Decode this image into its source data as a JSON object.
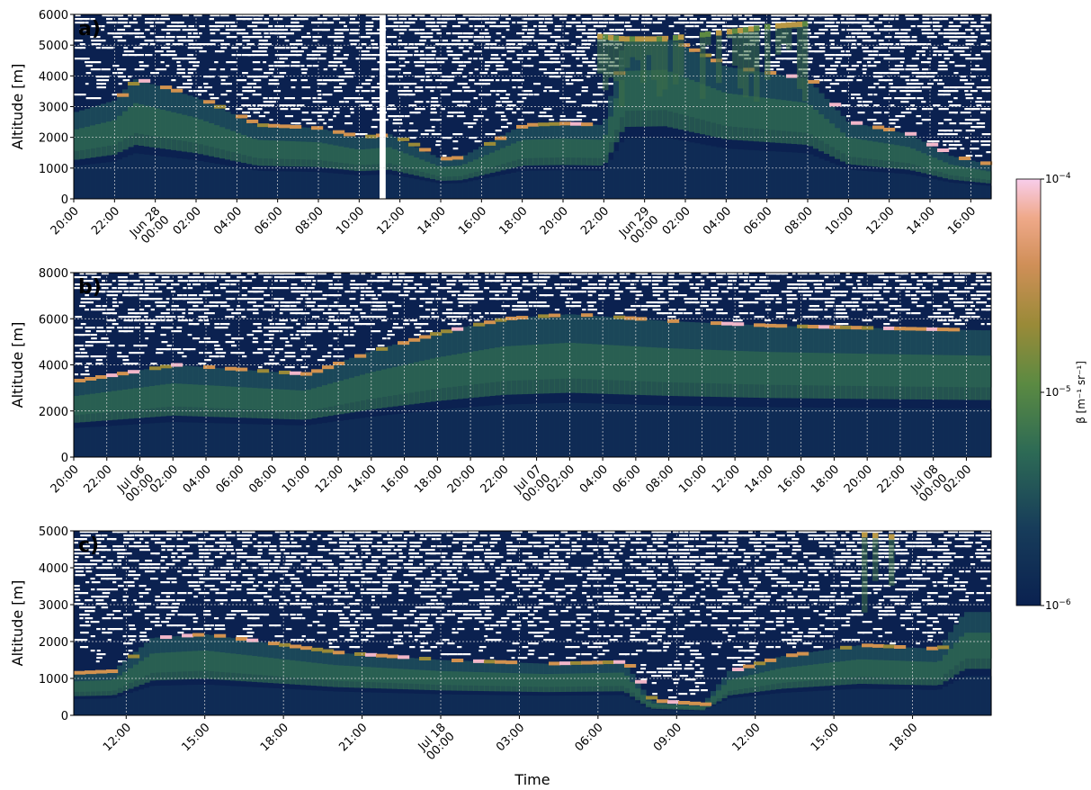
{
  "chart_data": [
    {
      "type": "heatmap",
      "panel_label": "a)",
      "ylabel": "Altitude [m]",
      "ylim": [
        0,
        6000
      ],
      "yticks": [
        0,
        1000,
        2000,
        3000,
        4000,
        5000,
        6000
      ],
      "xticklabels": [
        "20:00",
        "22:00",
        "Jun 28\n00:00",
        "02:00",
        "04:00",
        "06:00",
        "08:00",
        "10:00",
        "12:00",
        "14:00",
        "16:00",
        "18:00",
        "20:00",
        "22:00",
        "Jun 29\n00:00",
        "02:00",
        "04:00",
        "06:00",
        "08:00",
        "10:00",
        "12:00",
        "14:00",
        "16:00"
      ],
      "x_hours_start": 20,
      "x_hours_span": 45,
      "grid": true,
      "data_gap_hours": [
        15.0,
        15.3
      ],
      "layer_tops": [
        [
          0,
          2800
        ],
        [
          2,
          3200
        ],
        [
          3,
          3900
        ],
        [
          6,
          3300
        ],
        [
          9,
          2400
        ],
        [
          12,
          2300
        ],
        [
          14,
          2000
        ],
        [
          15.5,
          2100
        ],
        [
          18,
          1300
        ],
        [
          19,
          1350
        ],
        [
          22,
          2400
        ],
        [
          24,
          2450
        ],
        [
          26,
          2400
        ],
        [
          27,
          5200
        ],
        [
          29,
          5250
        ],
        [
          32,
          4300
        ],
        [
          36,
          3900
        ],
        [
          38,
          2500
        ],
        [
          41,
          2100
        ],
        [
          43,
          1400
        ],
        [
          45,
          1100
        ]
      ],
      "upper_cloud": [
        [
          25.5,
          5300
        ],
        [
          27,
          5200
        ],
        [
          29,
          5200
        ],
        [
          33,
          5500
        ],
        [
          34,
          5600
        ],
        [
          36,
          5700
        ]
      ]
    },
    {
      "type": "heatmap",
      "panel_label": "b)",
      "ylabel": "Altitude [m]",
      "ylim": [
        0,
        8000
      ],
      "yticks": [
        0,
        2000,
        4000,
        6000,
        8000
      ],
      "xticklabels": [
        "20:00",
        "22:00",
        "Jul 06\n00:00",
        "02:00",
        "04:00",
        "06:00",
        "08:00",
        "10:00",
        "12:00",
        "14:00",
        "16:00",
        "18:00",
        "20:00",
        "22:00",
        "Jul 07\n00:00",
        "02:00",
        "04:00",
        "06:00",
        "08:00",
        "10:00",
        "12:00",
        "14:00",
        "16:00",
        "18:00",
        "20:00",
        "22:00",
        "Jul 08\n00:00",
        "02:00"
      ],
      "x_hours_start": 20,
      "x_hours_span": 55.5,
      "grid": true,
      "layer_tops": [
        [
          0,
          3300
        ],
        [
          6,
          4000
        ],
        [
          10,
          3800
        ],
        [
          14,
          3600
        ],
        [
          18,
          4600
        ],
        [
          22,
          5400
        ],
        [
          26,
          6000
        ],
        [
          30,
          6200
        ],
        [
          36,
          5900
        ],
        [
          42,
          5700
        ],
        [
          48,
          5600
        ],
        [
          55,
          5500
        ]
      ]
    },
    {
      "type": "heatmap",
      "panel_label": "c)",
      "ylabel": "Altitude [m]",
      "xlabel": "Time",
      "ylim": [
        0,
        5000
      ],
      "yticks": [
        0,
        1000,
        2000,
        3000,
        4000,
        5000
      ],
      "xticklabels": [
        "12:00",
        "15:00",
        "18:00",
        "21:00",
        "Jul 18\n00:00",
        "03:00",
        "06:00",
        "09:00",
        "12:00",
        "15:00",
        "18:00"
      ],
      "x_hours_start": 10,
      "x_hours_span": 35,
      "grid": true,
      "layer_tops": [
        [
          0,
          1150
        ],
        [
          1.5,
          1200
        ],
        [
          3,
          2100
        ],
        [
          5,
          2200
        ],
        [
          7,
          2000
        ],
        [
          10,
          1700
        ],
        [
          14,
          1500
        ],
        [
          18,
          1400
        ],
        [
          21,
          1450
        ],
        [
          22,
          400
        ],
        [
          24,
          300
        ],
        [
          25,
          1200
        ],
        [
          27,
          1600
        ],
        [
          30,
          1900
        ],
        [
          33,
          1800
        ],
        [
          34,
          2800
        ],
        [
          35,
          2800
        ]
      ],
      "upper_cloud": [
        [
          30,
          4900
        ],
        [
          32,
          4800
        ]
      ]
    }
  ],
  "colorbar": {
    "label": "β [m⁻¹ sr⁻¹]",
    "scale": "log",
    "range": [
      1e-06,
      0.0001
    ],
    "ticks": [
      {
        "base": "10",
        "exp": "−6"
      },
      {
        "base": "10",
        "exp": "−5"
      },
      {
        "base": "10",
        "exp": "−4"
      }
    ],
    "colors": [
      "#0a2150",
      "#1d4a5c",
      "#3f7a4a",
      "#8a8c3a",
      "#c9904a",
      "#f0a07a",
      "#f7c9e6"
    ]
  }
}
